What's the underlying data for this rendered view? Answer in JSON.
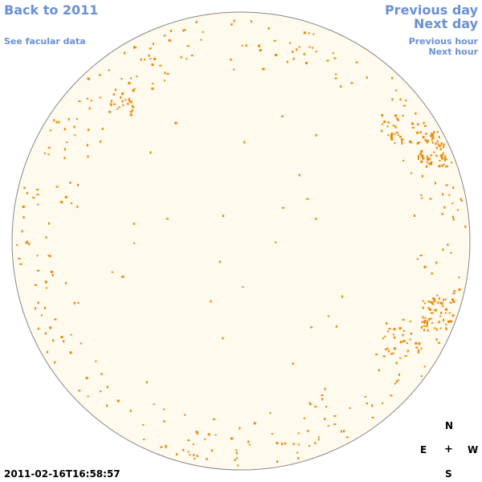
{
  "nav": {
    "back_label": "Back to 2011",
    "facular_label": "See facular data",
    "prev_day_label": "Previous day",
    "next_day_label": "Next day",
    "prev_hour_label": "Previous hour",
    "next_hour_label": "Next hour"
  },
  "compass": {
    "north": "N",
    "east": "E",
    "center": "+",
    "west": "W",
    "south": "S"
  },
  "timestamp": "2011-02-16T16:58:57",
  "colors": {
    "link": "#6a8fd8",
    "disk_fill": "#fff9ee",
    "disk_outline": "#888888",
    "facula": "#ee8800"
  }
}
